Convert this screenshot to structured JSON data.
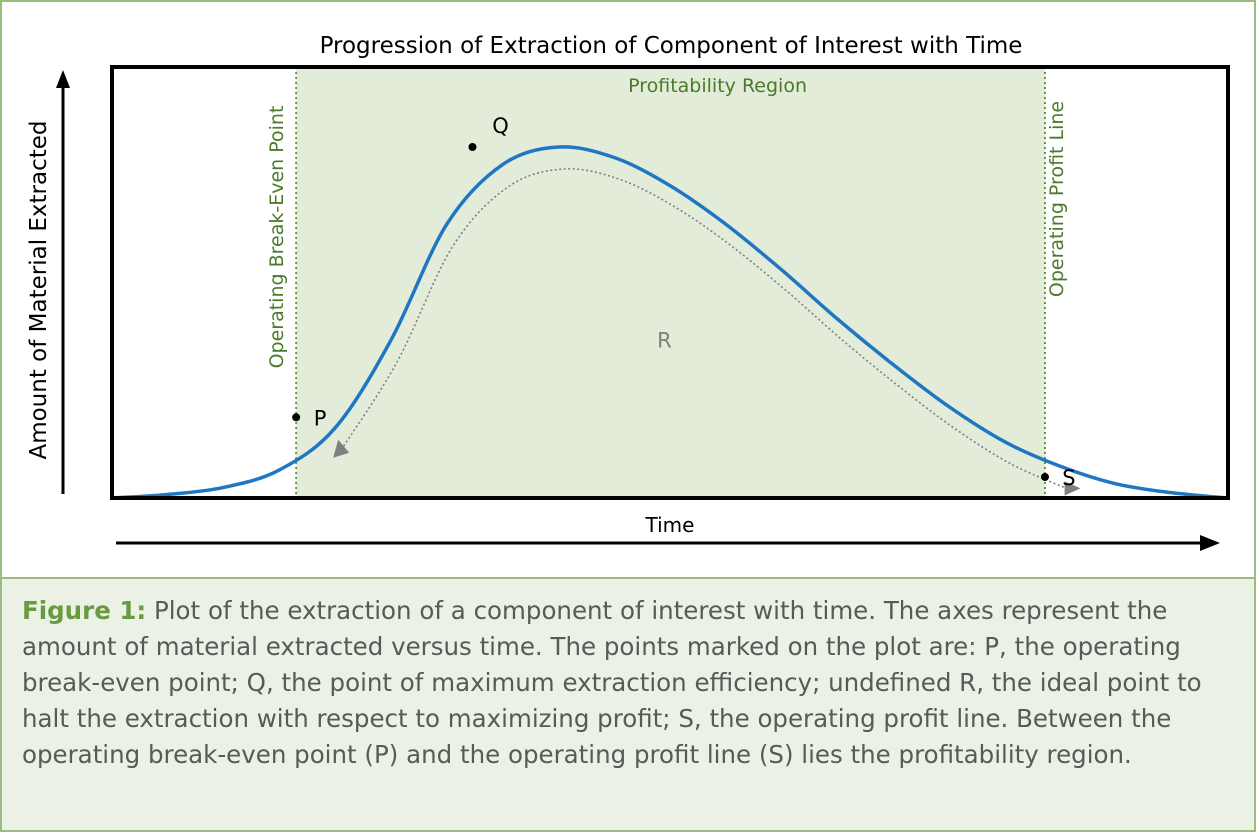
{
  "figure": {
    "caption_label": "Figure 1:",
    "caption_text": " Plot of the extraction of a component of interest with time. The axes represent the amount of material extracted versus time. The points marked on the plot are: P, the operating break-even point; Q, the point of maximum extraction efficiency; undefined R, the ideal point to halt the extraction with respect to maximizing profit; S, the operating profit line. Between the operating break-even point (P) and the operating profit line (S) lies the profitability region."
  },
  "colors": {
    "curve": "#1f77c4",
    "region_fill": "#e3ecd9",
    "guide_line": "#6a9a40",
    "region_label": "#4a7a2a",
    "r_label": "#7f7f7f",
    "arrow": "#7f7f7f",
    "caption_bg": "#ebf1e4",
    "caption_label": "#6a9a40"
  },
  "chart_data": {
    "type": "line",
    "title": "Progression of Extraction of Component of Interest with Time",
    "xlabel": "Time",
    "ylabel": "Amount of Material Extracted",
    "grid": false,
    "tick_labels": false,
    "region": {
      "label": "Profitability Region",
      "start_label": "Operating Break-Even Point",
      "end_label": "Operating Profit Line"
    },
    "series": [
      {
        "values_note": "",
        "x": [
          0,
          5,
          10,
          15,
          20,
          25,
          30,
          35,
          40,
          45,
          50,
          55,
          60,
          65,
          70,
          75,
          80,
          85,
          90,
          95,
          100
        ],
        "y": [
          0.0,
          0.01,
          0.03,
          0.08,
          0.2,
          0.45,
          0.78,
          0.95,
          1.0,
          0.97,
          0.89,
          0.78,
          0.65,
          0.51,
          0.38,
          0.26,
          0.16,
          0.09,
          0.04,
          0.015,
          0.0
        ]
      }
    ],
    "points": [
      {
        "label": "P",
        "x": 16.5,
        "y": 0.23
      },
      {
        "label": "Q",
        "x": 32.3,
        "y": 1.0
      },
      {
        "label": "S",
        "x": 83.6,
        "y": 0.06
      }
    ],
    "annotations": [
      {
        "label": "R"
      }
    ]
  }
}
